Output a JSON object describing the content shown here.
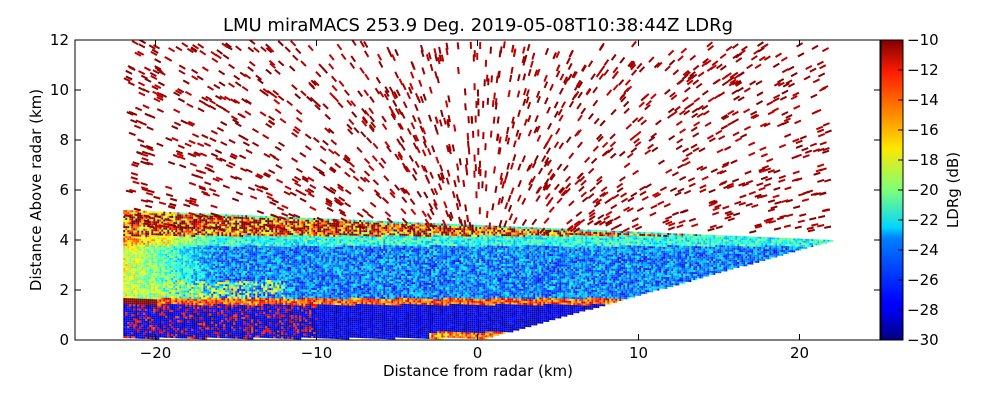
{
  "chart_data": {
    "type": "heatmap",
    "title": "LMU miraMACS 253.9 Deg. 2019-05-08T10:38:44Z  LDRg",
    "xlabel": "Distance from radar (km)",
    "ylabel": "Distance Above radar  (km)",
    "xlim": [
      -25,
      25
    ],
    "ylim": [
      0,
      12
    ],
    "xticks": [
      -20,
      -10,
      0,
      10,
      20
    ],
    "yticks": [
      0,
      2,
      4,
      6,
      8,
      10,
      12
    ],
    "colorbar": {
      "label": "LDRg (dB)",
      "range": [
        -30,
        -10
      ],
      "ticks": [
        -30,
        -28,
        -26,
        -24,
        -22,
        -20,
        -18,
        -16,
        -14,
        -12,
        -10
      ],
      "colormap": "jet"
    },
    "scan": {
      "elevation_edge_left": {
        "x_km": -22,
        "y_top_km": 5.2
      },
      "elevation_edge_right": {
        "x_km": 22,
        "y_top_km": 4.0
      },
      "cloud_top_km": 4.3,
      "melting_layer_km": 1.55,
      "regions": [
        {
          "name": "sparse-noise-above-cloud",
          "y_range_km": [
            4.4,
            12
          ],
          "ldr_db": -10
        },
        {
          "name": "ice-cloud-layer",
          "y_range_km": [
            1.7,
            4.4
          ],
          "ldr_db_range": [
            -27,
            -17
          ]
        },
        {
          "name": "melting-layer-bright-band",
          "y_range_km": [
            1.45,
            1.7
          ],
          "ldr_db_range": [
            -16,
            -10
          ]
        },
        {
          "name": "rain-below-melting-layer",
          "y_range_km": [
            0.1,
            1.45
          ],
          "ldr_db_range": [
            -30,
            -28
          ]
        }
      ]
    }
  }
}
